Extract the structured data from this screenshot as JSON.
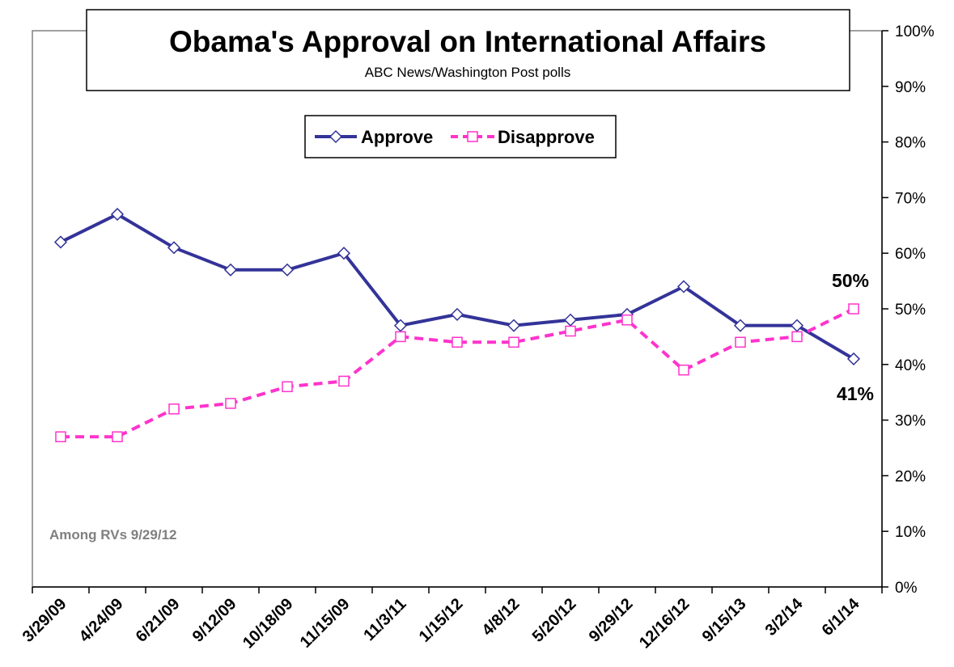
{
  "chart_data": {
    "type": "line",
    "title": "Obama's Approval on International Affairs",
    "subtitle": "ABC News/Washington  Post polls",
    "categories": [
      "3/29/09",
      "4/24/09",
      "6/21/09",
      "9/12/09",
      "10/18/09",
      "11/15/09",
      "11/3/11",
      "1/15/12",
      "4/8/12",
      "5/20/12",
      "9/29/12",
      "12/16/12",
      "9/15/13",
      "3/2/14",
      "6/1/14"
    ],
    "series": [
      {
        "name": "Approve",
        "color": "#333399",
        "dashed": false,
        "marker": "diamond",
        "values": [
          62,
          67,
          61,
          57,
          57,
          60,
          47,
          49,
          47,
          48,
          49,
          54,
          47,
          47,
          41
        ]
      },
      {
        "name": "Disapprove",
        "color": "#FF33CC",
        "dashed": true,
        "marker": "square",
        "values": [
          27,
          27,
          32,
          33,
          36,
          37,
          45,
          44,
          44,
          46,
          48,
          39,
          44,
          45,
          50
        ]
      }
    ],
    "ylim": [
      0,
      100
    ],
    "y_ticks": [
      "0%",
      "10%",
      "20%",
      "30%",
      "40%",
      "50%",
      "60%",
      "70%",
      "80%",
      "90%",
      "100%"
    ],
    "y_axis_side": "right",
    "grid": false,
    "legend_position": "top-center",
    "annotations": {
      "approve_end": "41%",
      "disapprove_end": "50%",
      "note": "Among RVs 9/29/12"
    }
  }
}
